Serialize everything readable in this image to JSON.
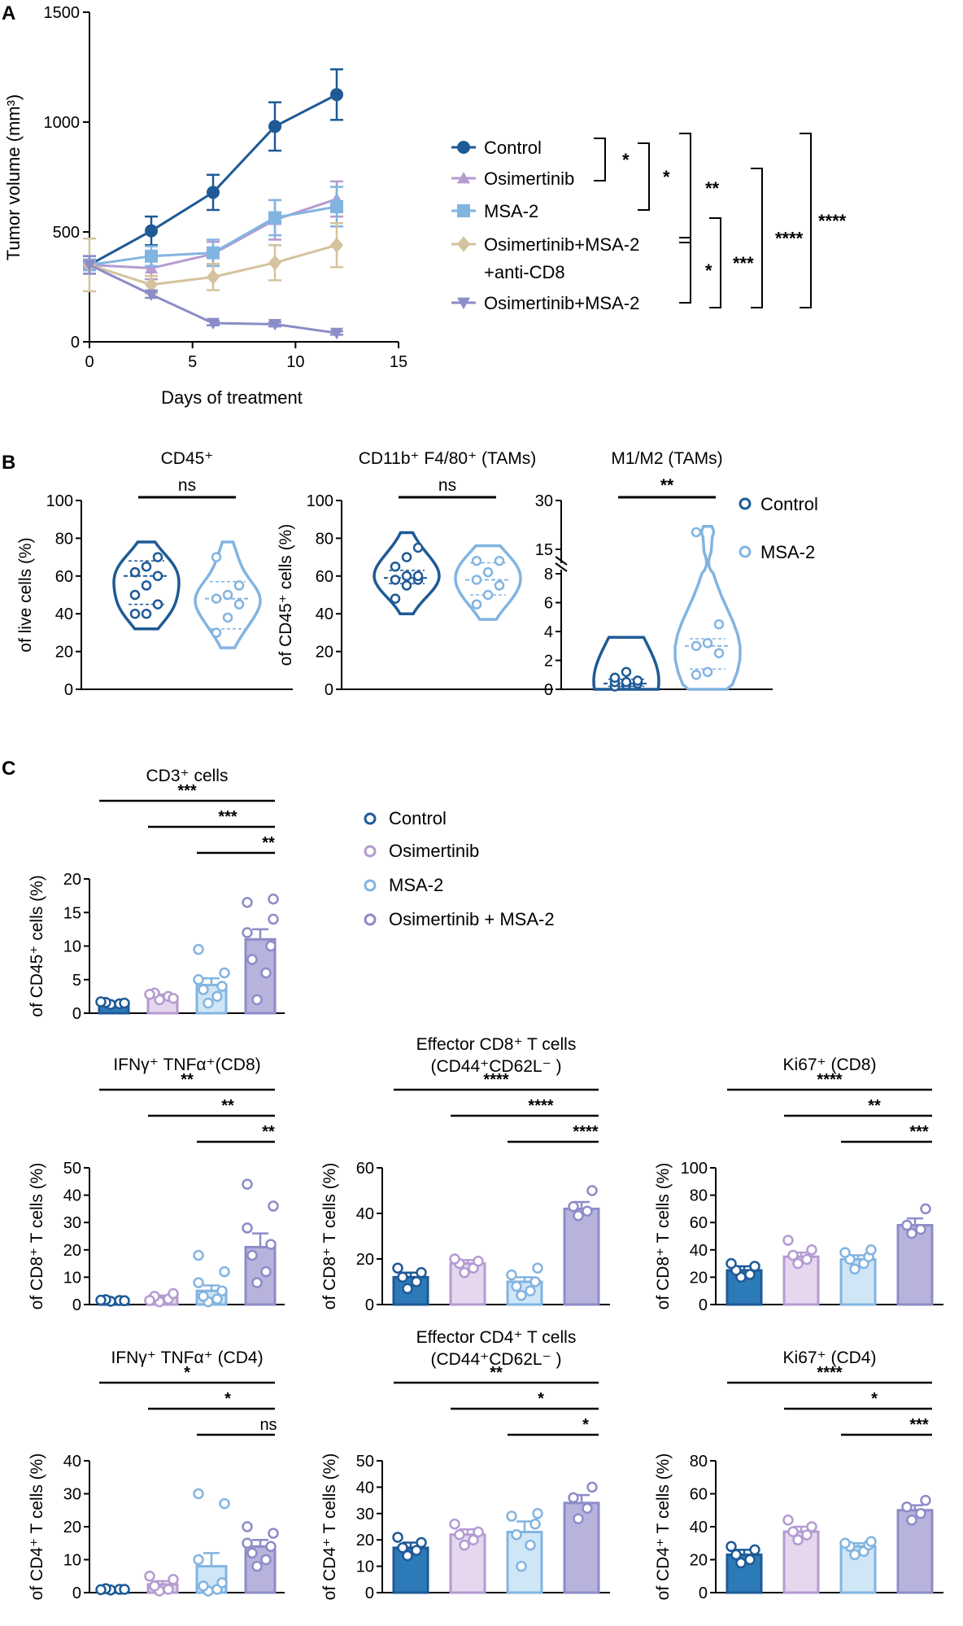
{
  "colors": {
    "control": "#1e5a96",
    "osimertinib": "#b49bd2",
    "msa2": "#82b4e1",
    "combo": "#8c8cc8",
    "anticd8": "#d4c39c",
    "barControl": "#2d7ab9",
    "barOsi": "#e6d7ef",
    "barMsa": "#cfe6f7",
    "barCombo": "#b7b3dd"
  },
  "panels": {
    "A": "A",
    "B": "B",
    "C": "C"
  },
  "chart_data": [
    {
      "id": "A",
      "type": "line",
      "title": "",
      "xlabel": "Days of treatment",
      "ylabel": "Tumor volume (mm³)",
      "xlim": [
        0,
        15
      ],
      "ylim": [
        0,
        1500
      ],
      "xticks": [
        "0",
        "5",
        "10",
        "15"
      ],
      "yticks": [
        "0",
        "500",
        "1000",
        "1500"
      ],
      "x": [
        0,
        3,
        6,
        9,
        12
      ],
      "series": [
        {
          "name": "Control",
          "color": "#1e5a96",
          "marker": "circle",
          "values": [
            350,
            505,
            680,
            980,
            1125
          ],
          "err": [
            40,
            65,
            80,
            110,
            115
          ]
        },
        {
          "name": "Osimertinib",
          "color": "#b49bd2",
          "marker": "triangle-up",
          "values": [
            350,
            335,
            400,
            555,
            650
          ],
          "err": [
            40,
            50,
            55,
            90,
            80
          ]
        },
        {
          "name": "MSA-2",
          "color": "#82b4e1",
          "marker": "square",
          "values": [
            350,
            390,
            405,
            565,
            615
          ],
          "err": [
            40,
            45,
            60,
            80,
            90
          ]
        },
        {
          "name": "Osimertinib+MSA-2",
          "line2": "+anti-CD8",
          "color": "#d4c39c",
          "marker": "diamond",
          "values": [
            350,
            260,
            295,
            360,
            440
          ],
          "err": [
            120,
            40,
            60,
            80,
            100
          ]
        },
        {
          "name": "Osimertinib+MSA-2",
          "color": "#8c8cc8",
          "marker": "triangle-down",
          "values": [
            350,
            215,
            85,
            80,
            40
          ],
          "err": [
            40,
            15,
            10,
            10,
            8
          ]
        }
      ],
      "significance": [
        {
          "groups": [
            0,
            1
          ],
          "label": "*"
        },
        {
          "groups": [
            0,
            2
          ],
          "label": "*"
        },
        {
          "groups": [
            0,
            3
          ],
          "label": "**"
        },
        {
          "groups": [
            3,
            4
          ],
          "label": "*"
        },
        {
          "groups": [
            2,
            4
          ],
          "label": "***"
        },
        {
          "groups": [
            1,
            4
          ],
          "label": "****"
        },
        {
          "groups": [
            0,
            4
          ],
          "label": "****"
        }
      ]
    },
    {
      "id": "B1",
      "type": "violin",
      "title": "CD45⁺",
      "ylabel": "of live cells (%)",
      "ylim": [
        0,
        100
      ],
      "yticks": [
        "0",
        "20",
        "40",
        "60",
        "80",
        "100"
      ],
      "categories": [
        "Control",
        "MSA-2"
      ],
      "significance": "ns",
      "groups": [
        {
          "points": [
            40,
            40,
            45,
            50,
            55,
            60,
            62,
            65,
            70
          ],
          "median": 60,
          "q1": 45,
          "q3": 68
        },
        {
          "points": [
            30,
            38,
            45,
            48,
            50,
            55,
            70
          ],
          "median": 48,
          "q1": 32,
          "q3": 57
        }
      ]
    },
    {
      "id": "B2",
      "type": "violin",
      "title": "CD11b⁺ F4/80⁺ (TAMs)",
      "ylabel": "of CD45⁺ cells (%)",
      "ylim": [
        0,
        100
      ],
      "yticks": [
        "0",
        "20",
        "40",
        "60",
        "80",
        "100"
      ],
      "categories": [
        "Control",
        "MSA-2"
      ],
      "significance": "ns",
      "groups": [
        {
          "points": [
            48,
            55,
            58,
            58,
            60,
            60,
            65,
            70,
            75
          ],
          "median": 59,
          "q1": 56,
          "q3": 63
        },
        {
          "points": [
            45,
            50,
            55,
            58,
            62,
            68,
            68
          ],
          "median": 58,
          "q1": 50,
          "q3": 67
        }
      ]
    },
    {
      "id": "B3",
      "type": "violin",
      "title": "M1/M2 (TAMs)",
      "ylim": [
        0,
        30
      ],
      "yticks": [
        "0",
        "2",
        "4",
        "6",
        "8",
        "15",
        "30"
      ],
      "axis_break": [
        8,
        15
      ],
      "categories": [
        "Control",
        "MSA-2"
      ],
      "significance": "**",
      "groups": [
        {
          "points": [
            0.2,
            0.3,
            0.4,
            0.5,
            0.5,
            0.6,
            0.8,
            1.2
          ],
          "median": 0.4,
          "q1": 0.2,
          "q3": 0.7
        },
        {
          "points": [
            1.0,
            1.2,
            2.5,
            3.0,
            3.2,
            4.5,
            17
          ],
          "median": 3.0,
          "q1": 1.4,
          "q3": 3.5
        }
      ]
    },
    {
      "id": "C1",
      "type": "bar",
      "title": "CD3⁺ cells",
      "ylabel": "of CD45⁺ cells (%)",
      "ylim": [
        0,
        20
      ],
      "yticks": [
        "0",
        "5",
        "10",
        "15",
        "20"
      ],
      "categories": [
        "Control",
        "Osimertinib",
        "MSA-2",
        "Osimertinib + MSA-2"
      ],
      "values": [
        1.5,
        2.5,
        4.2,
        11
      ],
      "sem": [
        0.2,
        0.3,
        1.0,
        1.5
      ],
      "points": [
        [
          1.3,
          1.4,
          1.6,
          1.5,
          1.7
        ],
        [
          2.0,
          2.5,
          3.0,
          2.2,
          2.8
        ],
        [
          1.5,
          2.5,
          3.5,
          4,
          5,
          6,
          9.5
        ],
        [
          2,
          6,
          8,
          10,
          12,
          14,
          16.5,
          17
        ]
      ],
      "significance": [
        {
          "groups": [
            0,
            3
          ],
          "label": "***"
        },
        {
          "groups": [
            1,
            3
          ],
          "label": "***"
        },
        {
          "groups": [
            2,
            3
          ],
          "label": "**"
        }
      ]
    },
    {
      "id": "C2",
      "type": "bar",
      "title": "IFNγ⁺ TNFα⁺(CD8)",
      "ylabel": "of CD8⁺ T cells (%)",
      "ylim": [
        0,
        50
      ],
      "yticks": [
        "0",
        "10",
        "20",
        "30",
        "40",
        "50"
      ],
      "categories": [
        "Control",
        "Osimertinib",
        "MSA-2",
        "Osimertinib + MSA-2"
      ],
      "values": [
        1.5,
        2.5,
        5,
        21
      ],
      "sem": [
        0.3,
        0.8,
        2,
        5
      ],
      "points": [
        [
          1.2,
          1.5,
          1.8,
          1.4,
          1.6
        ],
        [
          1,
          2,
          3,
          4,
          1.5
        ],
        [
          1,
          2,
          3,
          5,
          8,
          12,
          18
        ],
        [
          8,
          12,
          18,
          22,
          28,
          36,
          44
        ]
      ],
      "significance": [
        {
          "groups": [
            0,
            3
          ],
          "label": "**"
        },
        {
          "groups": [
            1,
            3
          ],
          "label": "**"
        },
        {
          "groups": [
            2,
            3
          ],
          "label": "**"
        }
      ]
    },
    {
      "id": "C3",
      "type": "bar",
      "title": "Effector CD8⁺ T cells",
      "subtitle": "(CD44⁺CD62L⁻ )",
      "ylabel": "of CD8⁺ T cells (%)",
      "ylim": [
        0,
        60
      ],
      "yticks": [
        "0",
        "20",
        "40",
        "60"
      ],
      "categories": [
        "Control",
        "Osimertinib",
        "MSA-2",
        "Osimertinib + MSA-2"
      ],
      "values": [
        12,
        18,
        10,
        42
      ],
      "sem": [
        2,
        1.5,
        2,
        3
      ],
      "points": [
        [
          7,
          10,
          12,
          14,
          16
        ],
        [
          14,
          16,
          18,
          19,
          20
        ],
        [
          4,
          6,
          8,
          10,
          13,
          16
        ],
        [
          39,
          41,
          43,
          50
        ]
      ],
      "significance": [
        {
          "groups": [
            0,
            3
          ],
          "label": "****"
        },
        {
          "groups": [
            1,
            3
          ],
          "label": "****"
        },
        {
          "groups": [
            2,
            3
          ],
          "label": "****"
        }
      ]
    },
    {
      "id": "C4",
      "type": "bar",
      "title": "Ki67⁺ (CD8)",
      "ylabel": "of CD8⁺ T cells (%)",
      "ylim": [
        0,
        100
      ],
      "yticks": [
        "0",
        "20",
        "40",
        "60",
        "80",
        "100"
      ],
      "categories": [
        "Control",
        "Osimertinib",
        "MSA-2",
        "Osimertinib + MSA-2"
      ],
      "values": [
        25,
        35,
        33,
        58
      ],
      "sem": [
        3,
        3,
        3,
        5
      ],
      "points": [
        [
          20,
          22,
          25,
          28,
          30
        ],
        [
          30,
          33,
          36,
          40,
          47
        ],
        [
          26,
          30,
          33,
          35,
          38,
          40
        ],
        [
          52,
          55,
          58,
          70
        ]
      ],
      "significance": [
        {
          "groups": [
            0,
            3
          ],
          "label": "****"
        },
        {
          "groups": [
            1,
            3
          ],
          "label": "**"
        },
        {
          "groups": [
            2,
            3
          ],
          "label": "***"
        }
      ]
    },
    {
      "id": "C5",
      "type": "bar",
      "title": "IFNγ⁺ TNFα⁺ (CD4)",
      "ylabel": "of CD4⁺ T cells (%)",
      "ylim": [
        0,
        40
      ],
      "yticks": [
        "0",
        "10",
        "20",
        "30",
        "40"
      ],
      "categories": [
        "Control",
        "Osimertinib",
        "MSA-2",
        "Osimertinib + MSA-2"
      ],
      "values": [
        1,
        2.5,
        8,
        14
      ],
      "sem": [
        0.2,
        1,
        4,
        2
      ],
      "points": [
        [
          0.8,
          1,
          1.2,
          1,
          0.9
        ],
        [
          0.5,
          1,
          2,
          4,
          5
        ],
        [
          0.5,
          1,
          2,
          3,
          10,
          27,
          30
        ],
        [
          8,
          10,
          12,
          14,
          15,
          18,
          20
        ]
      ],
      "significance": [
        {
          "groups": [
            0,
            3
          ],
          "label": "*"
        },
        {
          "groups": [
            1,
            3
          ],
          "label": "*"
        },
        {
          "groups": [
            2,
            3
          ],
          "label": "ns"
        }
      ]
    },
    {
      "id": "C6",
      "type": "bar",
      "title": "Effector CD4⁺ T cells",
      "subtitle": "(CD44⁺CD62L⁻ )",
      "ylabel": "of CD4⁺ T cells (%)",
      "ylim": [
        0,
        50
      ],
      "yticks": [
        "0",
        "10",
        "20",
        "30",
        "40",
        "50"
      ],
      "categories": [
        "Control",
        "Osimertinib",
        "MSA-2",
        "Osimertinib + MSA-2"
      ],
      "values": [
        17,
        22,
        23,
        34
      ],
      "sem": [
        2,
        2,
        4,
        3
      ],
      "points": [
        [
          14,
          16,
          17,
          19,
          21
        ],
        [
          18,
          20,
          22,
          23,
          26
        ],
        [
          10,
          18,
          22,
          26,
          29,
          30
        ],
        [
          28,
          32,
          36,
          40
        ]
      ],
      "significance": [
        {
          "groups": [
            0,
            3
          ],
          "label": "**"
        },
        {
          "groups": [
            1,
            3
          ],
          "label": "*"
        },
        {
          "groups": [
            2,
            3
          ],
          "label": "*"
        }
      ]
    },
    {
      "id": "C7",
      "type": "bar",
      "title": "Ki67⁺ (CD4)",
      "ylabel": "of CD4⁺ T cells (%)",
      "ylim": [
        0,
        80
      ],
      "yticks": [
        "0",
        "20",
        "40",
        "60",
        "80"
      ],
      "categories": [
        "Control",
        "Osimertinib",
        "MSA-2",
        "Osimertinib + MSA-2"
      ],
      "values": [
        23,
        37,
        28,
        50
      ],
      "sem": [
        3,
        3,
        2,
        3
      ],
      "points": [
        [
          18,
          20,
          23,
          26,
          28
        ],
        [
          32,
          35,
          37,
          40,
          44
        ],
        [
          23,
          25,
          28,
          29,
          30,
          31
        ],
        [
          44,
          48,
          52,
          56
        ]
      ],
      "significance": [
        {
          "groups": [
            0,
            3
          ],
          "label": "****"
        },
        {
          "groups": [
            1,
            3
          ],
          "label": "*"
        },
        {
          "groups": [
            2,
            3
          ],
          "label": "***"
        }
      ]
    }
  ],
  "legendB": [
    "Control",
    "MSA-2"
  ],
  "legendC": [
    "Control",
    "Osimertinib",
    "MSA-2",
    "Osimertinib + MSA-2"
  ]
}
